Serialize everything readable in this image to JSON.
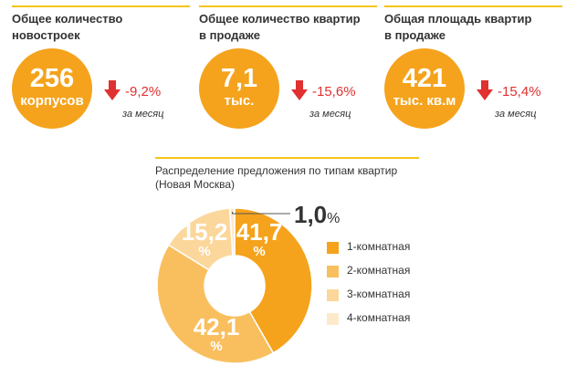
{
  "kpis": [
    {
      "label_line1": "Общее количество",
      "label_line2": "новостроек",
      "value": "256",
      "unit": "корпусов",
      "change": "-9,2%",
      "period": "за месяц"
    },
    {
      "label_line1": "Общее количество квартир",
      "label_line2": "в продаже",
      "value": "7,1",
      "unit": "тыс.",
      "change": "-15,6%",
      "period": "за месяц"
    },
    {
      "label_line1": "Общая площадь квартир",
      "label_line2": "в продаже",
      "value": "421",
      "unit": "тыс. кв.м",
      "change": "-15,4%",
      "period": "за месяц"
    }
  ],
  "colors": {
    "accent": "#f5a31c",
    "rule": "#f5c518",
    "negative": "#e03030"
  },
  "chart_data": {
    "type": "pie",
    "title_line1": "Распределение предложения по типам квартир",
    "title_line2": "(Новая Москва)",
    "donut": true,
    "slices": [
      {
        "name": "1-комнатная",
        "value": 41.7,
        "label": "41,7",
        "unit": "%",
        "color": "#f5a31c"
      },
      {
        "name": "2-комнатная",
        "value": 42.1,
        "label": "42,1",
        "unit": "%",
        "color": "#f9bf5e"
      },
      {
        "name": "3-комнатная",
        "value": 15.2,
        "label": "15,2",
        "unit": "%",
        "color": "#fcd79b"
      },
      {
        "name": "4-комнатная",
        "value": 1.0,
        "label": "1,0",
        "unit": "%",
        "color": "#fdeacb"
      }
    ]
  }
}
